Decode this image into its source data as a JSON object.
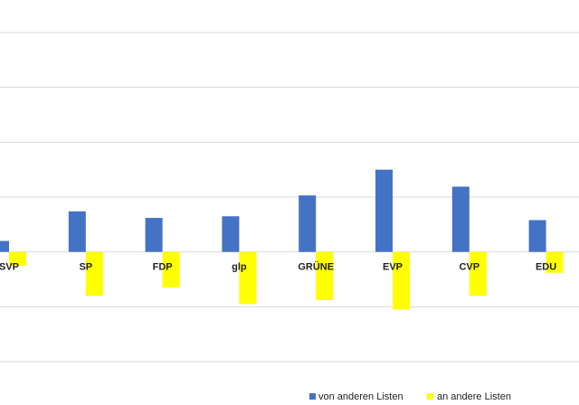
{
  "chart_data": {
    "type": "bar",
    "categories": [
      "SVP",
      "SP",
      "FDP",
      "glp",
      "GRÜNE",
      "EVP",
      "CVP",
      "EDU"
    ],
    "series": [
      {
        "name": "von anderen Listen",
        "color": "#4472c4",
        "values": [
          0.2,
          0.74,
          0.62,
          0.65,
          1.03,
          1.5,
          1.19,
          0.58
        ]
      },
      {
        "name": "an andere Listen",
        "color": "#ffff00",
        "values": [
          -0.25,
          -0.8,
          -0.65,
          -0.95,
          -0.88,
          -1.05,
          -0.8,
          -0.38
        ]
      }
    ],
    "ylim": [
      -2,
      4
    ],
    "grid": true,
    "legend_position": "bottom-right"
  }
}
